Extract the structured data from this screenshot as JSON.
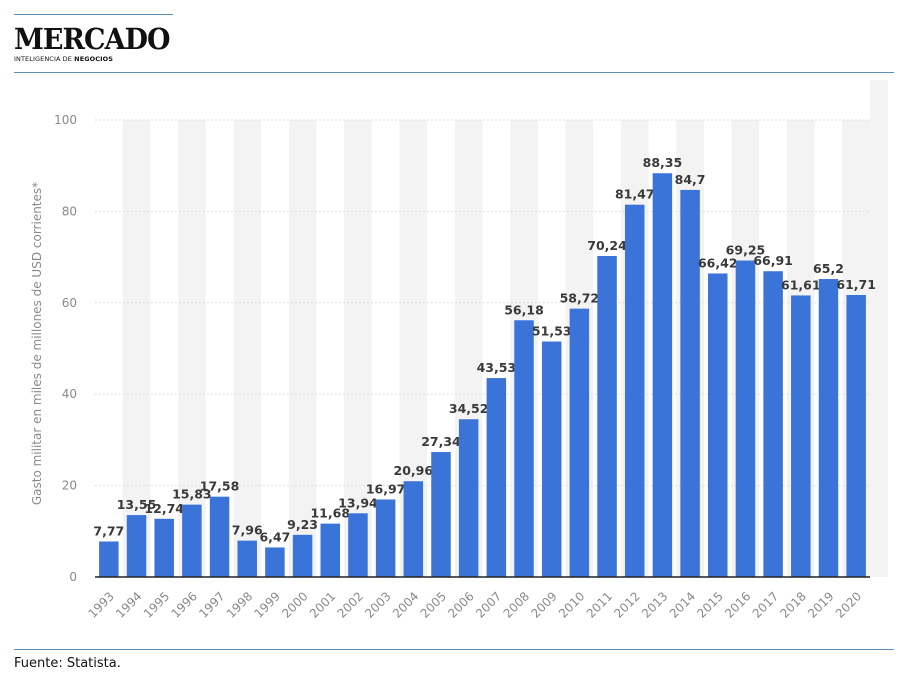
{
  "brand": {
    "name": "MERCADO",
    "tagline_prefix": "INTELIGENCIA DE",
    "tagline_bold": "NEGOCIOS"
  },
  "footer": {
    "source": "Fuente: Statista."
  },
  "colors": {
    "bar": "#3b74d8",
    "band": "#f3f3f3",
    "grid": "#d6d6d6",
    "rule": "#5b8db8",
    "label": "#3a3a3a",
    "axis_text": "#8a8a8a"
  },
  "chart_data": {
    "type": "bar",
    "ylabel": "Gasto militar en miles de millones de USD corrientes*",
    "xlabel": "",
    "ylim": [
      0,
      100
    ],
    "yticks": [
      0,
      20,
      40,
      60,
      80,
      100
    ],
    "grid": true,
    "categories": [
      "1993",
      "1994",
      "1995",
      "1996",
      "1997",
      "1998",
      "1999",
      "2000",
      "2001",
      "2002",
      "2003",
      "2004",
      "2005",
      "2006",
      "2007",
      "2008",
      "2009",
      "2010",
      "2011",
      "2012",
      "2013",
      "2014",
      "2015",
      "2016",
      "2017",
      "2018",
      "2019",
      "2020"
    ],
    "values": [
      7.77,
      13.55,
      12.74,
      15.83,
      17.58,
      7.96,
      6.47,
      9.23,
      11.68,
      13.94,
      16.97,
      20.96,
      27.34,
      34.52,
      43.53,
      56.18,
      51.53,
      58.72,
      70.24,
      81.47,
      88.35,
      84.7,
      66.42,
      69.25,
      66.91,
      61.61,
      65.2,
      61.71
    ],
    "value_labels": [
      "7,77",
      "13,55",
      "12,74",
      "15,83",
      "17,58",
      "7,96",
      "6,47",
      "9,23",
      "11,68",
      "13,94",
      "16,97",
      "20,96",
      "27,34",
      "34,52",
      "43,53",
      "56,18",
      "51,53",
      "58,72",
      "70,24",
      "81,47",
      "88,35",
      "84,7",
      "66,42",
      "69,25",
      "66,91",
      "61,61",
      "65,2",
      "61,71"
    ]
  }
}
